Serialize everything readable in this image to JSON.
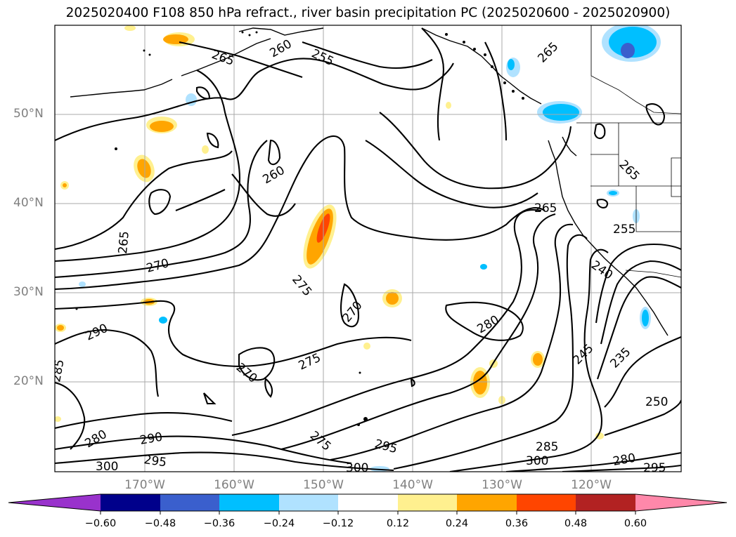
{
  "title": "2025020400 F108 850 hPa refract., river basin precipitation PC (2025020600 - 2025020900)",
  "lat_labels": [
    "50°N",
    "40°N",
    "30°N",
    "20°N"
  ],
  "lon_labels": [
    "170°W",
    "160°W",
    "150°W",
    "140°W",
    "130°W",
    "120°W"
  ],
  "contour_labels": [
    "265",
    "260",
    "255",
    "265",
    "260",
    "265",
    "270",
    "275",
    "270",
    "280",
    "265",
    "255",
    "240",
    "245",
    "235",
    "250",
    "290",
    "285",
    "270",
    "275",
    "280",
    "290",
    "295",
    "300",
    "275",
    "295",
    "300",
    "285",
    "300",
    "280",
    "295",
    "265"
  ],
  "colorbar": {
    "colors": [
      "#9932cc",
      "#00008b",
      "#3a5fcd",
      "#00bfff",
      "#b0e2ff",
      "#ffffff",
      "#fff08f",
      "#ffa500",
      "#ff4500",
      "#b22222",
      "#ff88aa"
    ],
    "labels": [
      "−0.60",
      "−0.48",
      "−0.36",
      "−0.24",
      "−0.12",
      "0.12",
      "0.24",
      "0.36",
      "0.48",
      "0.60"
    ]
  },
  "shading_colors": {
    "pos_light": "#fff08f",
    "pos_mid": "#ffa500",
    "pos_high": "#ff4500",
    "neg_light": "#b0e2ff",
    "neg_mid": "#00bfff",
    "neg_high": "#3a5fcd"
  }
}
